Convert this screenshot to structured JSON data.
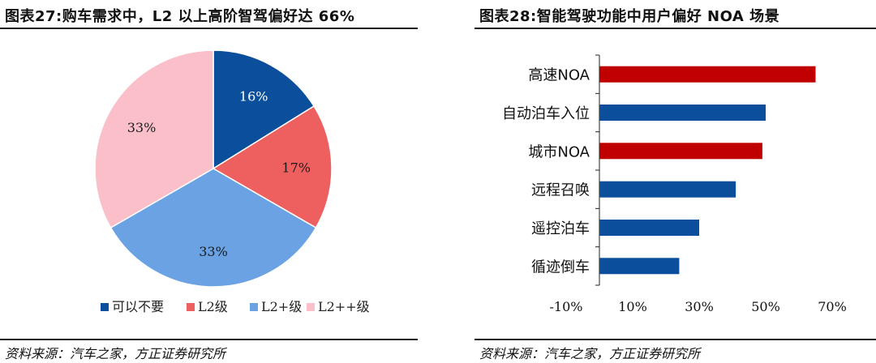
{
  "left": {
    "title": "图表27:购车需求中，L2 以上高阶智驾偏好达 66%",
    "source": "资料来源：汽车之家，方正证券研究所"
  },
  "right": {
    "title": "图表28:智能驾驶功能中用户偏好 NOA 场景",
    "source": "资料来源：汽车之家，方正证券研究所"
  },
  "chart_data": [
    {
      "type": "pie",
      "title": "图表27:购车需求中，L2 以上高阶智驾偏好达 66%",
      "slices": [
        {
          "label": "可以不要",
          "value": 16,
          "display": "16%",
          "color": "#0b4f9c"
        },
        {
          "label": "L2级",
          "value": 17,
          "display": "17%",
          "color": "#ee5f5f"
        },
        {
          "label": "L2+级",
          "value": 33,
          "display": "33%",
          "color": "#6aa2e4"
        },
        {
          "label": "L2++级",
          "value": 33,
          "display": "33%",
          "color": "#fbbfc9"
        }
      ],
      "legend_position": "bottom"
    },
    {
      "type": "bar",
      "orientation": "horizontal",
      "title": "图表28:智能驾驶功能中用户偏好 NOA 场景",
      "categories": [
        "高速NOA",
        "自动泊车入位",
        "城市NOA",
        "远程召唤",
        "遥控泊车",
        "循迹倒车"
      ],
      "values": [
        65,
        50,
        49,
        41,
        30,
        24
      ],
      "colors": [
        "#c00000",
        "#0b4f9c",
        "#c00000",
        "#0b4f9c",
        "#0b4f9c",
        "#0b4f9c"
      ],
      "xlim": [
        -10,
        70
      ],
      "xticks": [
        -10,
        10,
        30,
        50,
        70
      ],
      "xtick_labels": [
        "-10%",
        "10%",
        "30%",
        "50%",
        "70%"
      ],
      "grid": false
    }
  ]
}
